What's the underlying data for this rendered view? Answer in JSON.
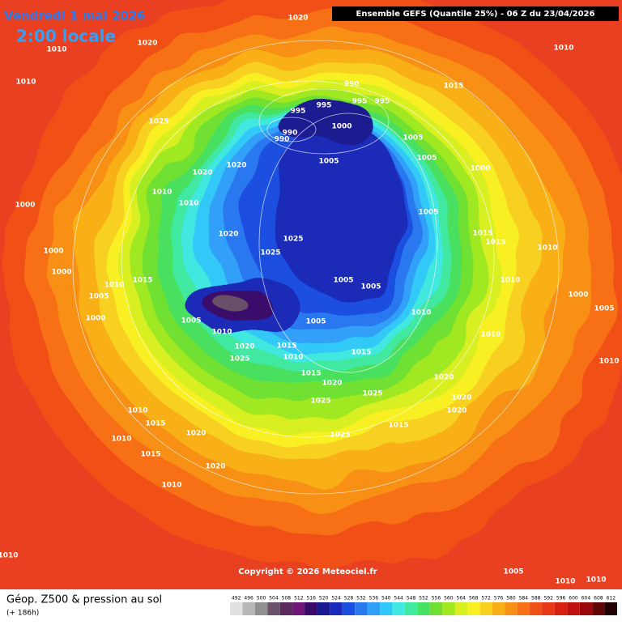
{
  "header": {
    "date": "Vendredi 1 mai 2026",
    "time": "2:00 locale",
    "model": "Ensemble GEFS  (Quantile 25%) - 06 Z du 23/04/2026"
  },
  "isobar_labels": [
    "1020",
    "1010",
    "1020",
    "1010",
    "1025",
    "990",
    "995",
    "995",
    "995",
    "995",
    "990",
    "990",
    "1000",
    "1015",
    "1010",
    "1005",
    "1005",
    "1005",
    "1020",
    "1020",
    "1010",
    "1010",
    "1000",
    "1000",
    "1005",
    "1015",
    "1015",
    "1010",
    "1020",
    "1025",
    "1025",
    "1000",
    "1000",
    "1015",
    "1010",
    "1005",
    "1005",
    "1010",
    "1000",
    "1005",
    "1005",
    "1000",
    "1005",
    "1010",
    "1005",
    "1010",
    "1010",
    "1020",
    "1015",
    "1010",
    "1025",
    "1015",
    "1015",
    "1020",
    "1020",
    "1010",
    "1025",
    "1025",
    "1020",
    "1020",
    "1010",
    "1015",
    "1015",
    "1025",
    "1020",
    "1010",
    "1015",
    "1020",
    "1010",
    "1010",
    "1005",
    "1010",
    "1010"
  ],
  "copyright": "Copyright © 2026 Meteociel.fr",
  "footer": {
    "title": "Géop. Z500 & pression au sol",
    "lead": "(+ 186h)"
  },
  "legend": {
    "levels": [
      "492",
      "496",
      "500",
      "504",
      "508",
      "512",
      "516",
      "520",
      "524",
      "528",
      "532",
      "536",
      "540",
      "544",
      "548",
      "552",
      "556",
      "560",
      "564",
      "568",
      "572",
      "576",
      "580",
      "584",
      "588",
      "592",
      "596",
      "600",
      "604",
      "608",
      "612"
    ],
    "colors": [
      "#e0e0e0",
      "#b8b8b8",
      "#909090",
      "#6a5068",
      "#5a2a5a",
      "#701878",
      "#3a0a6a",
      "#1a1a90",
      "#1a2ab8",
      "#1a50e0",
      "#2a78f0",
      "#30a0f8",
      "#30c8f8",
      "#40e8e0",
      "#40e8a0",
      "#48e060",
      "#70e030",
      "#a0e820",
      "#d8f020",
      "#f8f020",
      "#f8d020",
      "#f8b018",
      "#f89018",
      "#f87018",
      "#f05018",
      "#e83818",
      "#d82010",
      "#c01010",
      "#980808",
      "#600404",
      "#200000"
    ]
  }
}
